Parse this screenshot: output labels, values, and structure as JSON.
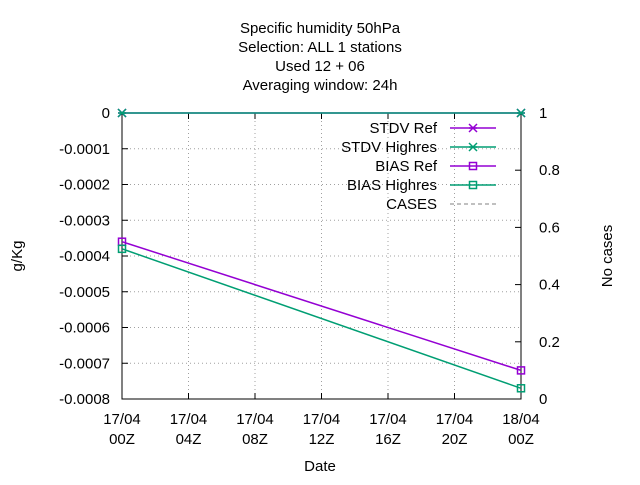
{
  "chart_data": {
    "type": "line",
    "title_lines": [
      "Specific humidity 50hPa",
      "Selection: ALL      1 stations",
      "Used  12 + 06",
      "Averaging window: 24h"
    ],
    "xlabel": "Date",
    "ylabel": "g/Kg",
    "y2label": "No cases",
    "x_ticks": [
      {
        "x": 0,
        "top": "17/04",
        "bottom": "00Z"
      },
      {
        "x": 4,
        "top": "17/04",
        "bottom": "04Z"
      },
      {
        "x": 8,
        "top": "17/04",
        "bottom": "08Z"
      },
      {
        "x": 12,
        "top": "17/04",
        "bottom": "12Z"
      },
      {
        "x": 16,
        "top": "17/04",
        "bottom": "16Z"
      },
      {
        "x": 20,
        "top": "17/04",
        "bottom": "20Z"
      },
      {
        "x": 24,
        "top": "18/04",
        "bottom": "00Z"
      }
    ],
    "xlim": [
      0,
      24
    ],
    "ylim": [
      -0.0008,
      0
    ],
    "y_ticks": [
      {
        "v": 0,
        "label": "0"
      },
      {
        "v": -0.0001,
        "label": "-0.0001"
      },
      {
        "v": -0.0002,
        "label": "-0.0002"
      },
      {
        "v": -0.0003,
        "label": "-0.0003"
      },
      {
        "v": -0.0004,
        "label": "-0.0004"
      },
      {
        "v": -0.0005,
        "label": "-0.0005"
      },
      {
        "v": -0.0006,
        "label": "-0.0006"
      },
      {
        "v": -0.0007,
        "label": "-0.0007"
      },
      {
        "v": -0.0008,
        "label": "-0.0008"
      }
    ],
    "y2lim": [
      0,
      1
    ],
    "y2_ticks": [
      {
        "v": 0,
        "label": "0"
      },
      {
        "v": 0.2,
        "label": "0.2"
      },
      {
        "v": 0.4,
        "label": "0.4"
      },
      {
        "v": 0.6,
        "label": "0.6"
      },
      {
        "v": 0.8,
        "label": "0.8"
      },
      {
        "v": 1,
        "label": "1"
      }
    ],
    "grid": true,
    "legend_position": "top-right",
    "series": [
      {
        "name": "STDV Ref",
        "color": "#9400d3",
        "marker": "star",
        "axis": "y",
        "x": [
          0,
          24
        ],
        "values": [
          0,
          0
        ]
      },
      {
        "name": "STDV Highres",
        "color": "#009e73",
        "marker": "star",
        "axis": "y",
        "x": [
          0,
          24
        ],
        "values": [
          0,
          0
        ]
      },
      {
        "name": "BIAS Ref",
        "color": "#9400d3",
        "marker": "square",
        "axis": "y",
        "x": [
          0,
          24
        ],
        "values": [
          -0.00036,
          -0.00072
        ]
      },
      {
        "name": "BIAS Highres",
        "color": "#009e73",
        "marker": "square",
        "axis": "y",
        "x": [
          0,
          24
        ],
        "values": [
          -0.00038,
          -0.00077
        ]
      },
      {
        "name": "CASES",
        "color": "#808080",
        "marker": "none",
        "dashed": true,
        "axis": "y2",
        "x": [],
        "values": []
      }
    ]
  }
}
